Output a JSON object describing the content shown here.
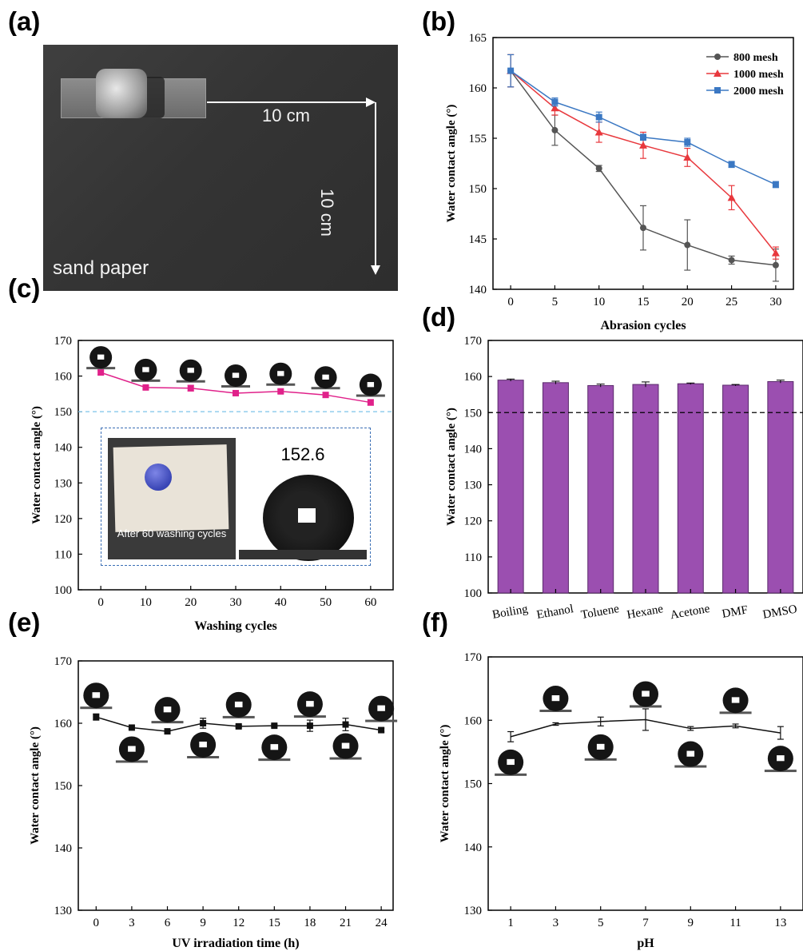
{
  "panels": {
    "a": {
      "letter": "(a)",
      "scale_h": "10 cm",
      "scale_v": "10 cm",
      "caption": "sand paper"
    },
    "b": {
      "letter": "(b)"
    },
    "c": {
      "letter": "(c)",
      "inset_caption": "After 60 washing cycles",
      "inset_angle": "152.6"
    },
    "d": {
      "letter": "(d)"
    },
    "e": {
      "letter": "(e)"
    },
    "f": {
      "letter": "(f)"
    }
  },
  "colors": {
    "s800": "#555555",
    "s1000": "#e8383d",
    "s2000": "#3b78c3",
    "wash": "#e0218a",
    "bar": "#9b4fb0",
    "ref": "#7cc3e8"
  },
  "chart_data": [
    {
      "id": "b",
      "type": "line",
      "xlabel": "Abrasion cycles",
      "ylabel": "Water contact angle (°)",
      "xlim": [
        -2,
        32
      ],
      "ylim": [
        140,
        165
      ],
      "xticks": [
        0,
        5,
        10,
        15,
        20,
        25,
        30
      ],
      "yticks": [
        140,
        145,
        150,
        155,
        160,
        165
      ],
      "legend": "top-right",
      "x": [
        0,
        5,
        10,
        15,
        20,
        25,
        30
      ],
      "series": [
        {
          "name": "800 mesh",
          "marker": "circle",
          "color": "#555555",
          "values": [
            161.7,
            155.8,
            152.0,
            146.1,
            144.4,
            142.9,
            142.4
          ],
          "errors": [
            1.6,
            1.5,
            0.3,
            2.2,
            2.5,
            0.4,
            1.6
          ]
        },
        {
          "name": "1000 mesh",
          "marker": "triangle",
          "color": "#e8383d",
          "values": [
            161.7,
            158.0,
            155.6,
            154.3,
            153.1,
            149.1,
            143.6
          ],
          "errors": [
            1.6,
            0.7,
            1.0,
            1.3,
            0.9,
            1.2,
            0.6
          ]
        },
        {
          "name": "2000 mesh",
          "marker": "square",
          "color": "#3b78c3",
          "values": [
            161.7,
            158.6,
            157.1,
            155.1,
            154.6,
            152.4,
            150.4
          ],
          "errors": [
            1.6,
            0.4,
            0.5,
            0.3,
            0.4,
            0.3,
            0.3
          ]
        }
      ]
    },
    {
      "id": "c",
      "type": "line",
      "xlabel": "Washing cycles",
      "ylabel": "Water contact angle (°)",
      "xlim": [
        -5,
        65
      ],
      "ylim": [
        100,
        170
      ],
      "xticks": [
        0,
        10,
        20,
        30,
        40,
        50,
        60
      ],
      "yticks": [
        100,
        110,
        120,
        130,
        140,
        150,
        160,
        170
      ],
      "reference_line": 150,
      "x": [
        0,
        10,
        20,
        30,
        40,
        50,
        60
      ],
      "series": [
        {
          "marker": "square",
          "color": "#e0218a",
          "values": [
            161.0,
            156.8,
            156.6,
            155.2,
            155.7,
            154.7,
            152.6
          ],
          "errors": [
            0.6,
            0.5,
            0.8,
            0.6,
            0.6,
            0.7,
            0.8
          ]
        }
      ]
    },
    {
      "id": "d",
      "type": "bar",
      "ylabel": "Water contact angle (°)",
      "ylim": [
        100,
        170
      ],
      "yticks": [
        100,
        110,
        120,
        130,
        140,
        150,
        160,
        170
      ],
      "reference_line": 150,
      "categories": [
        "Boiling",
        "Ethanol",
        "Toluene",
        "Hexane",
        "Acetone",
        "DMF",
        "DMSO"
      ],
      "values": [
        159.0,
        158.3,
        157.5,
        157.8,
        158.0,
        157.6,
        158.6
      ],
      "errors": [
        0.3,
        0.4,
        0.4,
        0.7,
        0.2,
        0.2,
        0.4
      ]
    },
    {
      "id": "e",
      "type": "line",
      "xlabel": "UV irradiation time (h)",
      "ylabel": "Water contact angle (°)",
      "xlim": [
        -1.5,
        25
      ],
      "ylim": [
        130,
        170
      ],
      "xticks": [
        0,
        3,
        6,
        9,
        12,
        15,
        18,
        21,
        24
      ],
      "yticks": [
        130,
        140,
        150,
        160,
        170
      ],
      "x": [
        0,
        3,
        6,
        9,
        12,
        15,
        18,
        21,
        24
      ],
      "series": [
        {
          "marker": "square",
          "color": "#111111",
          "values": [
            161.0,
            159.3,
            158.7,
            160.0,
            159.5,
            159.6,
            159.6,
            159.8,
            158.9
          ],
          "errors": [
            0.5,
            0.2,
            0.3,
            0.8,
            0.2,
            0.2,
            0.9,
            1.0,
            0.3
          ]
        }
      ]
    },
    {
      "id": "f",
      "type": "line",
      "xlabel": "pH",
      "ylabel": "Water contact angle (°)",
      "xlim": [
        0,
        14
      ],
      "ylim": [
        130,
        170
      ],
      "xticks": [
        1,
        3,
        5,
        7,
        9,
        11,
        13
      ],
      "yticks": [
        130,
        140,
        150,
        160,
        170
      ],
      "x": [
        1,
        3,
        5,
        7,
        9,
        11,
        13
      ],
      "series": [
        {
          "marker": "none",
          "color": "#111111",
          "values": [
            157.4,
            159.4,
            159.8,
            160.1,
            158.7,
            159.1,
            158.0
          ],
          "errors": [
            0.8,
            0.2,
            0.7,
            1.7,
            0.3,
            0.3,
            1.0
          ]
        }
      ]
    }
  ]
}
